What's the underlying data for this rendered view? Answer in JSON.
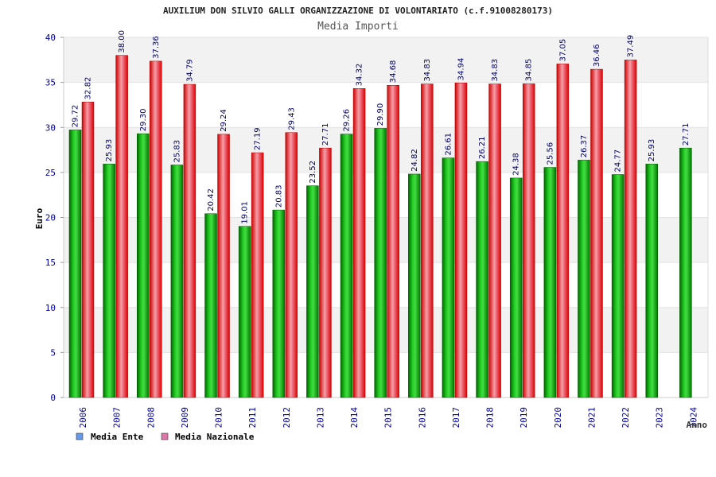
{
  "chart_data": {
    "type": "bar",
    "title": "AUXILIUM DON SILVIO GALLI ORGANIZZAZIONE DI VOLONTARIATO (c.f.91008280173)",
    "subtitle": "Media Importi",
    "xlabel": "Anno",
    "ylabel": "Euro",
    "ylim": [
      0,
      40
    ],
    "yticks": [
      "0",
      "5",
      "10",
      "15",
      "20",
      "25",
      "30",
      "35",
      "40"
    ],
    "grid": true,
    "legend_position": "bottom-left",
    "categories": [
      "2006",
      "2007",
      "2008",
      "2009",
      "2010",
      "2011",
      "2012",
      "2013",
      "2014",
      "2015",
      "2016",
      "2017",
      "2018",
      "2019",
      "2020",
      "2021",
      "2022",
      "2023",
      "2024"
    ],
    "series": [
      {
        "name": "Media Ente",
        "color": "#00aa00",
        "legend_color": "#6699ee",
        "values": [
          29.72,
          25.93,
          29.3,
          25.83,
          20.42,
          19.01,
          20.83,
          23.52,
          29.26,
          29.9,
          24.82,
          26.61,
          26.21,
          24.38,
          25.56,
          26.37,
          24.77,
          25.93,
          27.71
        ],
        "labels": [
          "29.72",
          "25.93",
          "29.30",
          "25.83",
          "20.42",
          "19.01",
          "20.83",
          "23.52",
          "29.26",
          "29.90",
          "24.82",
          "26.61",
          "26.21",
          "24.38",
          "25.56",
          "26.37",
          "24.77",
          "25.93",
          "27.71"
        ]
      },
      {
        "name": "Media Nazionale",
        "color": "#ee1111",
        "legend_color": "#dd77aa",
        "values": [
          32.82,
          38.0,
          37.36,
          34.79,
          29.24,
          27.19,
          29.43,
          27.71,
          34.32,
          34.68,
          34.83,
          34.94,
          34.83,
          34.85,
          37.05,
          36.46,
          37.49,
          null,
          null
        ],
        "labels": [
          "32.82",
          "38.00",
          "37.36",
          "34.79",
          "29.24",
          "27.19",
          "29.43",
          "27.71",
          "34.32",
          "34.68",
          "34.83",
          "34.94",
          "34.83",
          "34.85",
          "37.05",
          "36.46",
          "37.49",
          null,
          null
        ]
      }
    ]
  }
}
